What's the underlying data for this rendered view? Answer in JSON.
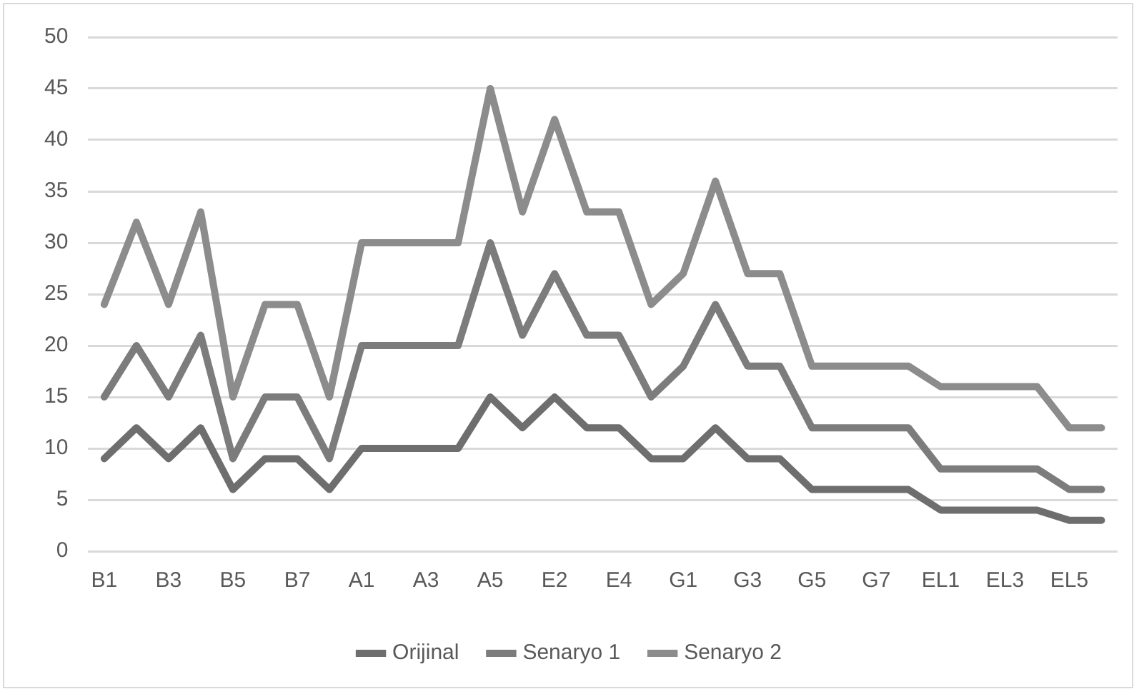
{
  "chart_data": {
    "type": "line",
    "categories": [
      "B1",
      null,
      "B3",
      null,
      "B5",
      null,
      "B7",
      null,
      "A1",
      null,
      "A3",
      null,
      "A5",
      null,
      "E2",
      null,
      "E4",
      null,
      "G1",
      null,
      "G3",
      null,
      "G5",
      null,
      "G7",
      null,
      "EL1",
      null,
      "EL3",
      null,
      "EL5",
      null
    ],
    "series": [
      {
        "name": "Orijinal",
        "color": "#6e6e6e",
        "values": [
          9,
          12,
          9,
          12,
          6,
          9,
          9,
          6,
          10,
          10,
          10,
          10,
          15,
          12,
          15,
          12,
          12,
          9,
          9,
          12,
          9,
          9,
          6,
          6,
          6,
          6,
          4,
          4,
          4,
          4,
          3,
          3
        ]
      },
      {
        "name": "Senaryo 1",
        "color": "#7c7c7c",
        "values": [
          15,
          20,
          15,
          21,
          9,
          15,
          15,
          9,
          20,
          20,
          20,
          20,
          30,
          21,
          27,
          21,
          21,
          15,
          18,
          24,
          18,
          18,
          12,
          12,
          12,
          12,
          8,
          8,
          8,
          8,
          6,
          6
        ]
      },
      {
        "name": "Senaryo 2",
        "color": "#8c8c8c",
        "values": [
          24,
          32,
          24,
          33,
          15,
          24,
          24,
          15,
          30,
          30,
          30,
          30,
          45,
          33,
          42,
          33,
          33,
          24,
          27,
          36,
          27,
          27,
          18,
          18,
          18,
          18,
          16,
          16,
          16,
          16,
          12,
          12
        ]
      }
    ],
    "ylim": [
      0,
      50
    ],
    "yticks": [
      0,
      5,
      10,
      15,
      20,
      25,
      30,
      35,
      40,
      45,
      50
    ],
    "grid": "y",
    "legend": "bottom",
    "marker": "none",
    "line_style": "solid"
  }
}
